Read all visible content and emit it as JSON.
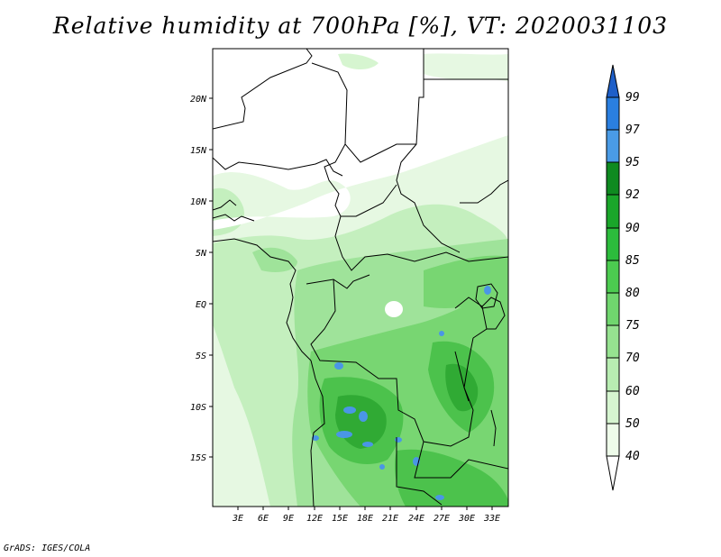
{
  "title": "Relative humidity at 700hPa [%], VT: 2020031103",
  "credit": "GrADS: IGES/COLA",
  "lat_labels": [
    "20N",
    "15N",
    "10N",
    "5N",
    "EQ",
    "5S",
    "10S",
    "15S"
  ],
  "lon_labels": [
    "3E",
    "6E",
    "9E",
    "12E",
    "15E",
    "18E",
    "21E",
    "24E",
    "27E",
    "30E",
    "33E"
  ],
  "colorbar": {
    "labels": [
      "99",
      "97",
      "95",
      "92",
      "90",
      "85",
      "80",
      "75",
      "70",
      "60",
      "50",
      "40"
    ],
    "colors": [
      "#1e5fc8",
      "#2a7fe0",
      "#4a9be6",
      "#0f8a20",
      "#1aa62a",
      "#2cbc3c",
      "#4ccb50",
      "#70d66e",
      "#96e290",
      "#b8edb2",
      "#d6f5d0",
      "#eefcea",
      "#ffffff"
    ]
  },
  "palette": {
    "light": "#e6f8e2",
    "l2": "#c4efbe",
    "l3": "#9fe39a",
    "mid": "#78d672",
    "dark": "#4cc24c",
    "darker": "#30aa34",
    "blue": "#4a96e6",
    "border": "#000000"
  }
}
